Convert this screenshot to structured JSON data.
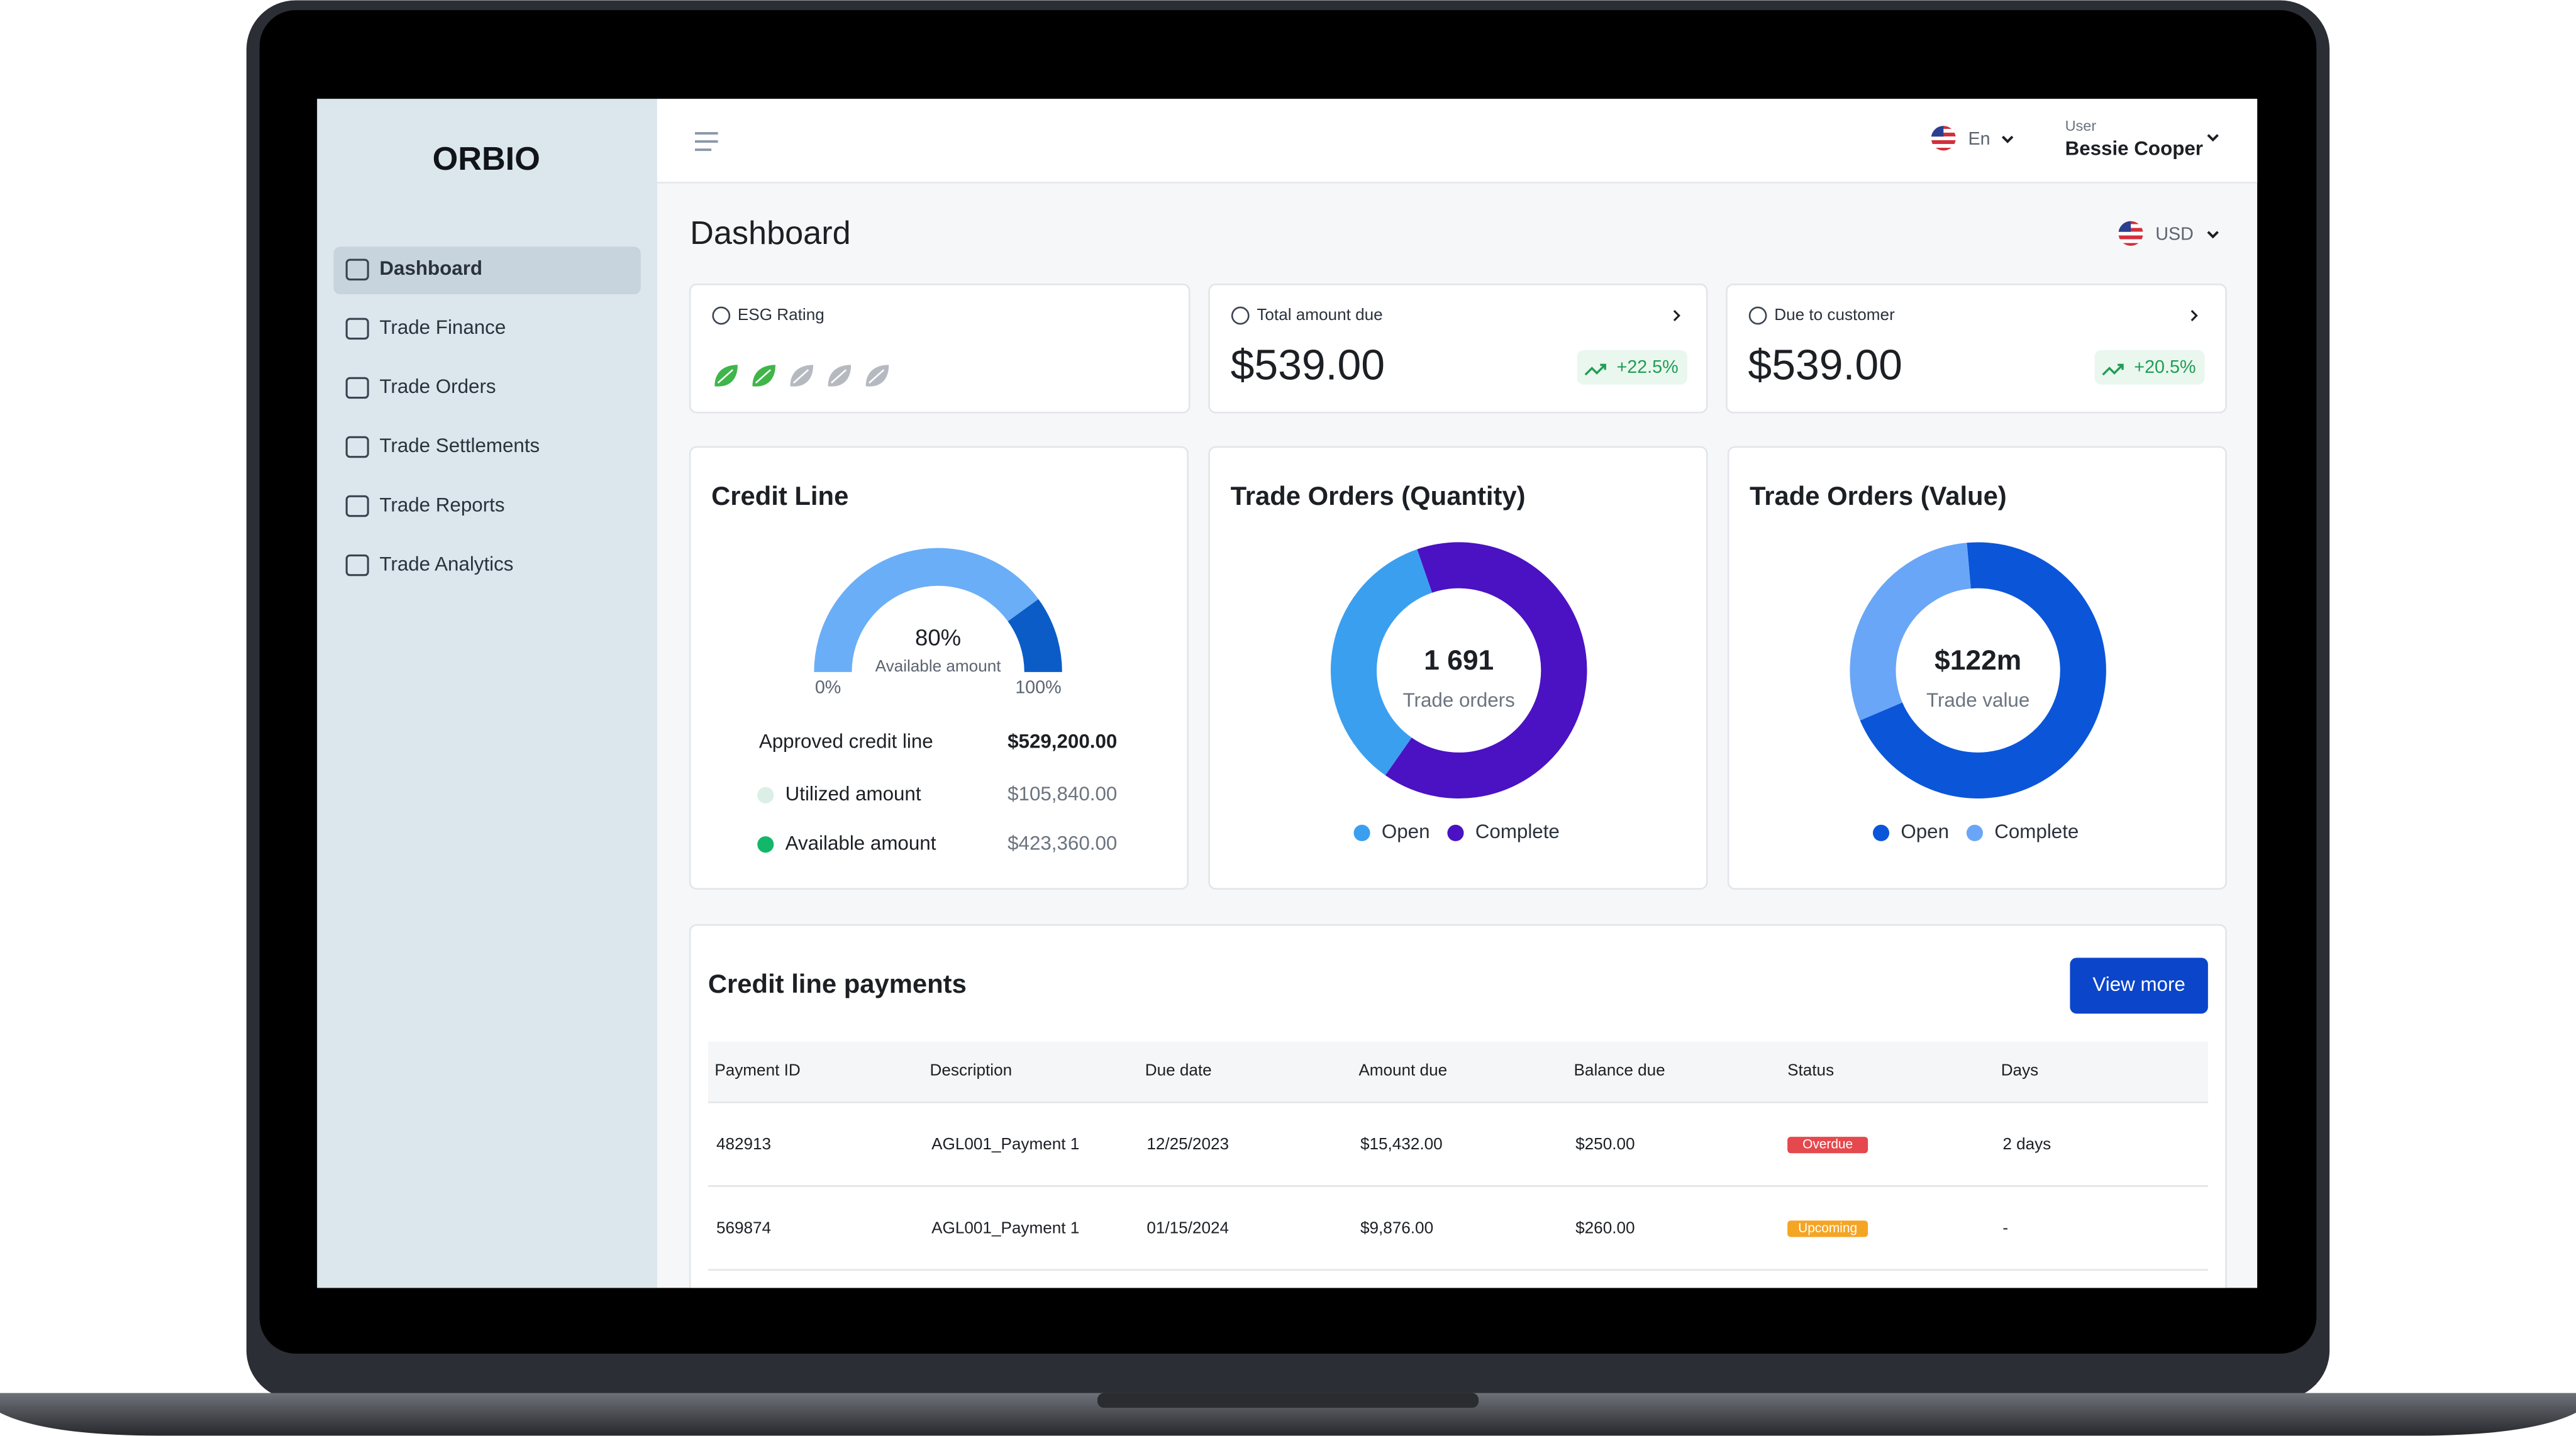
{
  "brand": "ORBIO",
  "sidebar": {
    "items": [
      "Dashboard",
      "Trade Finance",
      "Trade Orders",
      "Trade Settlements",
      "Trade Reports",
      "Trade Analytics"
    ]
  },
  "header": {
    "language": "En",
    "user_label": "User",
    "user_name": "Bessie Cooper"
  },
  "page_title": "Dashboard",
  "currency": "USD",
  "stats": [
    {
      "label": "ESG Rating",
      "rating": 2,
      "rating_max": 5,
      "color": "#3fb54a"
    },
    {
      "label": "Total amount due",
      "amount": "$539.00",
      "change": "+22.5%"
    },
    {
      "label": "Due to customer",
      "amount": "$539.00",
      "change": "+20.5%"
    }
  ],
  "credit_line": {
    "title": "Credit Line",
    "gauge": {
      "value": {
        "value": 80,
        "label": "80%"
      },
      "caption": "Available amount",
      "range": [
        {
          "value": 0,
          "label": "0%"
        },
        {
          "value": 100,
          "label": "100%"
        }
      ],
      "colors": [
        "#6aaef7",
        "#0b5cc7"
      ]
    },
    "rows": [
      {
        "label": "Approved credit line",
        "amount": "$529,200.00"
      },
      {
        "label": "Utilized amount",
        "amount": "$105,840.00",
        "color": "#dcefe6"
      },
      {
        "label": "Available amount",
        "amount": "$423,360.00",
        "color": "#12b76a"
      }
    ]
  },
  "donuts": [
    {
      "title": "Trade Orders (Quantity)",
      "center_value": "1 691",
      "center_label": "Trade orders",
      "segments": [
        {
          "name": "Open",
          "value": 35,
          "color": "#3b9ff0"
        },
        {
          "name": "Complete",
          "value": 65,
          "color": "#4a12c2"
        }
      ]
    },
    {
      "title": "Trade Orders (Value)",
      "center_value": "$122m",
      "center_label": "Trade value",
      "segments": [
        {
          "name": "Open",
          "value": 70,
          "color": "#0b55d9"
        },
        {
          "name": "Complete",
          "value": 30,
          "color": "#6aa6f7"
        }
      ]
    }
  ],
  "payments": {
    "title": "Credit line payments",
    "button": "View more",
    "columns": [
      "Payment ID",
      "Description",
      "Due date",
      "Amount due",
      "Balance due",
      "Status",
      "Days"
    ],
    "rows": [
      [
        "482913",
        "AGL001_Payment 1",
        "12/25/2023",
        "$15,432.00",
        "$250.00",
        "Overdue",
        "2 days"
      ],
      [
        "569874",
        "AGL001_Payment 1",
        "01/15/2024",
        "$9,876.00",
        "$260.00",
        "Upcoming",
        "-"
      ]
    ],
    "status_colors": [
      "#e5484d",
      "#f5a524"
    ]
  }
}
